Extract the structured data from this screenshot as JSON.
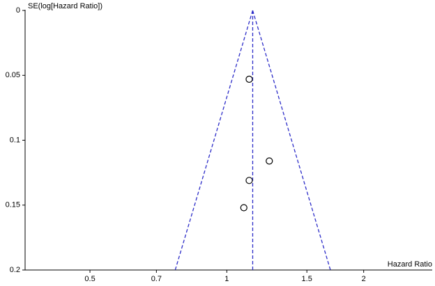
{
  "chart_data": {
    "type": "funnel",
    "y_label": "SE(log[Hazard Ratio])",
    "x_label": "Hazard Ratio",
    "x_log": true,
    "xlim": [
      0.36,
      2.83
    ],
    "ylim": [
      0,
      0.2
    ],
    "y_inverted": true,
    "xticks": [
      0.5,
      0.7,
      1,
      1.5,
      2
    ],
    "yticks": [
      0,
      0.05,
      0.1,
      0.15,
      0.2
    ],
    "pooled_estimate": 1.14,
    "funnel_base": [
      0.77,
      1.69
    ],
    "funnel_color": "#2b2bc8",
    "points": {
      "x": [
        1.12,
        1.24,
        1.12,
        1.09
      ],
      "y": [
        0.053,
        0.116,
        0.131,
        0.152
      ]
    }
  }
}
